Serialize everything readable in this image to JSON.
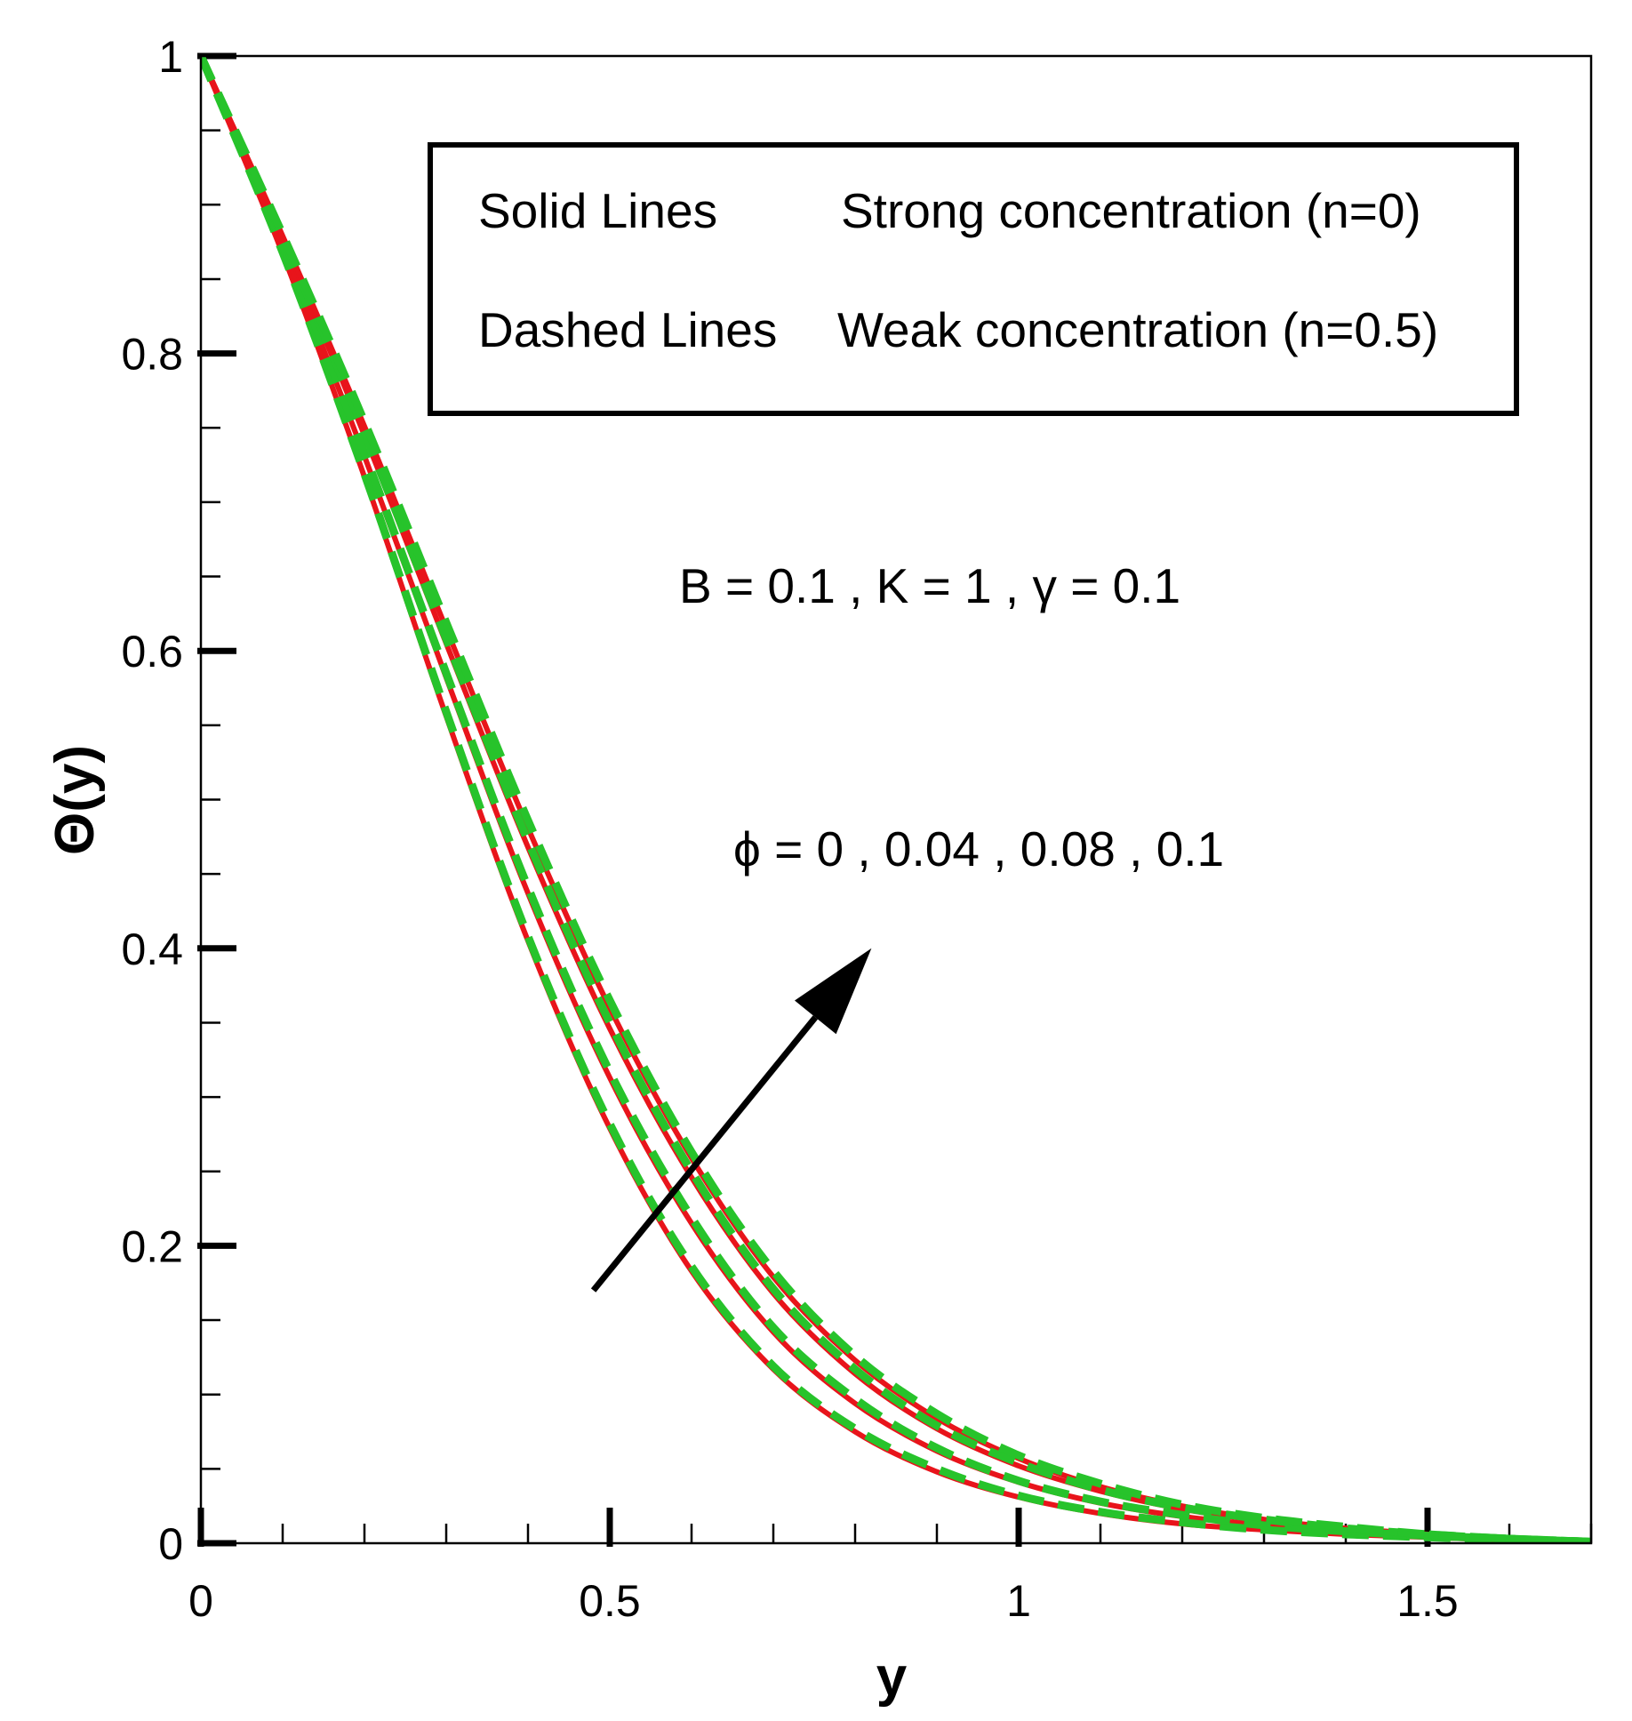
{
  "chart_data": {
    "type": "line",
    "title": "",
    "xlabel": "y",
    "ylabel": "Θ(y)",
    "xlim": [
      0,
      1.7
    ],
    "ylim": [
      0,
      1
    ],
    "x_ticks": [
      {
        "value": 0,
        "label": "0"
      },
      {
        "value": 0.5,
        "label": "0.5"
      },
      {
        "value": 1,
        "label": "1"
      },
      {
        "value": 1.5,
        "label": "1.5"
      }
    ],
    "y_ticks": [
      {
        "value": 0,
        "label": "0"
      },
      {
        "value": 0.2,
        "label": "0.2"
      },
      {
        "value": 0.4,
        "label": "0.4"
      },
      {
        "value": 0.6,
        "label": "0.6"
      },
      {
        "value": 0.8,
        "label": "0.8"
      },
      {
        "value": 1,
        "label": "1"
      }
    ],
    "x_minor_step": 0.1,
    "y_minor_step": 0.05,
    "grid": false,
    "x": [
      0,
      0.1,
      0.2,
      0.3,
      0.4,
      0.5,
      0.6,
      0.7,
      0.8,
      0.9,
      1.0,
      1.1,
      1.2,
      1.3,
      1.4,
      1.5,
      1.6,
      1.7
    ],
    "series": [
      {
        "name": "phi=0, n=0",
        "style": "solid",
        "color": "#e8141b",
        "values": [
          1.0,
          0.867,
          0.717,
          0.556,
          0.405,
          0.279,
          0.183,
          0.117,
          0.075,
          0.048,
          0.031,
          0.02,
          0.013,
          0.009,
          0.006,
          0.004,
          0.002,
          0.001
        ]
      },
      {
        "name": "phi=0.04, n=0",
        "style": "solid",
        "color": "#e8141b",
        "values": [
          1.0,
          0.872,
          0.731,
          0.582,
          0.437,
          0.313,
          0.215,
          0.142,
          0.094,
          0.062,
          0.041,
          0.027,
          0.018,
          0.012,
          0.008,
          0.005,
          0.003,
          0.001
        ]
      },
      {
        "name": "phi=0.08, n=0",
        "style": "solid",
        "color": "#e8141b",
        "values": [
          1.0,
          0.877,
          0.745,
          0.605,
          0.468,
          0.346,
          0.246,
          0.168,
          0.114,
          0.077,
          0.052,
          0.035,
          0.023,
          0.015,
          0.01,
          0.006,
          0.003,
          0.001
        ]
      },
      {
        "name": "phi=0.1, n=0",
        "style": "solid",
        "color": "#e8141b",
        "values": [
          1.0,
          0.879,
          0.751,
          0.615,
          0.481,
          0.36,
          0.259,
          0.179,
          0.123,
          0.084,
          0.057,
          0.038,
          0.025,
          0.016,
          0.01,
          0.006,
          0.003,
          0.001
        ]
      },
      {
        "name": "phi=0, n=0.5",
        "style": "dashed",
        "color": "#27c32b",
        "values": [
          1.0,
          0.868,
          0.719,
          0.559,
          0.408,
          0.282,
          0.186,
          0.119,
          0.077,
          0.05,
          0.032,
          0.021,
          0.014,
          0.009,
          0.006,
          0.004,
          0.002,
          0.001
        ]
      },
      {
        "name": "phi=0.04, n=0.5",
        "style": "dashed",
        "color": "#27c32b",
        "values": [
          1.0,
          0.873,
          0.733,
          0.585,
          0.441,
          0.317,
          0.219,
          0.145,
          0.097,
          0.064,
          0.042,
          0.028,
          0.019,
          0.012,
          0.008,
          0.005,
          0.003,
          0.001
        ]
      },
      {
        "name": "phi=0.08, n=0.5",
        "style": "dashed",
        "color": "#27c32b",
        "values": [
          1.0,
          0.878,
          0.747,
          0.608,
          0.472,
          0.35,
          0.25,
          0.171,
          0.117,
          0.079,
          0.054,
          0.036,
          0.024,
          0.016,
          0.01,
          0.006,
          0.003,
          0.001
        ]
      },
      {
        "name": "phi=0.1, n=0.5",
        "style": "dashed",
        "color": "#27c32b",
        "values": [
          1.0,
          0.88,
          0.754,
          0.619,
          0.486,
          0.365,
          0.263,
          0.183,
          0.126,
          0.087,
          0.059,
          0.04,
          0.026,
          0.017,
          0.011,
          0.006,
          0.003,
          0.001
        ]
      }
    ],
    "legend": {
      "position": "top-right",
      "entries": [
        {
          "key": "Solid Lines",
          "label": "Strong concentration (n=0)"
        },
        {
          "key": "Dashed Lines",
          "label": "Weak concentration (n=0.5)"
        }
      ]
    },
    "annotations": {
      "params": "B = 0.1 , K = 1 , γ = 0.1",
      "phi": "ϕ = 0 , 0.04 , 0.08 , 0.1",
      "arrow": {
        "from": [
          0.48,
          0.17
        ],
        "to": [
          0.82,
          0.4
        ]
      }
    }
  }
}
